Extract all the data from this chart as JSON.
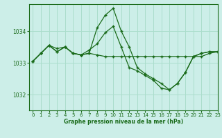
{
  "title": "Graphe pression niveau de la mer (hPa)",
  "background_color": "#cceee8",
  "grid_color": "#aaddcc",
  "line_color": "#1a6b1a",
  "xlim": [
    -0.5,
    23
  ],
  "ylim": [
    1031.5,
    1034.85
  ],
  "yticks": [
    1032,
    1033,
    1034
  ],
  "xticks": [
    0,
    1,
    2,
    3,
    4,
    5,
    6,
    7,
    8,
    9,
    10,
    11,
    12,
    13,
    14,
    15,
    16,
    17,
    18,
    19,
    20,
    21,
    22,
    23
  ],
  "series": [
    [
      1033.05,
      1033.3,
      1033.55,
      1033.35,
      1033.5,
      1033.3,
      1033.25,
      1033.3,
      1033.25,
      1033.2,
      1033.2,
      1033.2,
      1033.2,
      1033.2,
      1033.2,
      1033.2,
      1033.2,
      1033.2,
      1033.2,
      1033.2,
      1033.2,
      1033.2,
      1033.3,
      1033.35
    ],
    [
      1033.05,
      1033.3,
      1033.55,
      1033.35,
      1033.5,
      1033.3,
      1033.25,
      1033.3,
      1034.1,
      1034.5,
      1034.72,
      1034.0,
      1033.5,
      1032.85,
      1032.65,
      1032.5,
      1032.35,
      1032.15,
      1032.35,
      1032.7,
      1033.2,
      1033.3,
      1033.35,
      1033.35
    ],
    [
      1033.05,
      1033.3,
      1033.55,
      1033.45,
      1033.5,
      1033.3,
      1033.25,
      1033.4,
      1033.6,
      1033.95,
      1034.15,
      1033.5,
      1032.85,
      1032.75,
      1032.6,
      1032.45,
      1032.2,
      1032.15,
      1032.35,
      1032.7,
      1033.2,
      1033.3,
      1033.35,
      1033.35
    ]
  ]
}
